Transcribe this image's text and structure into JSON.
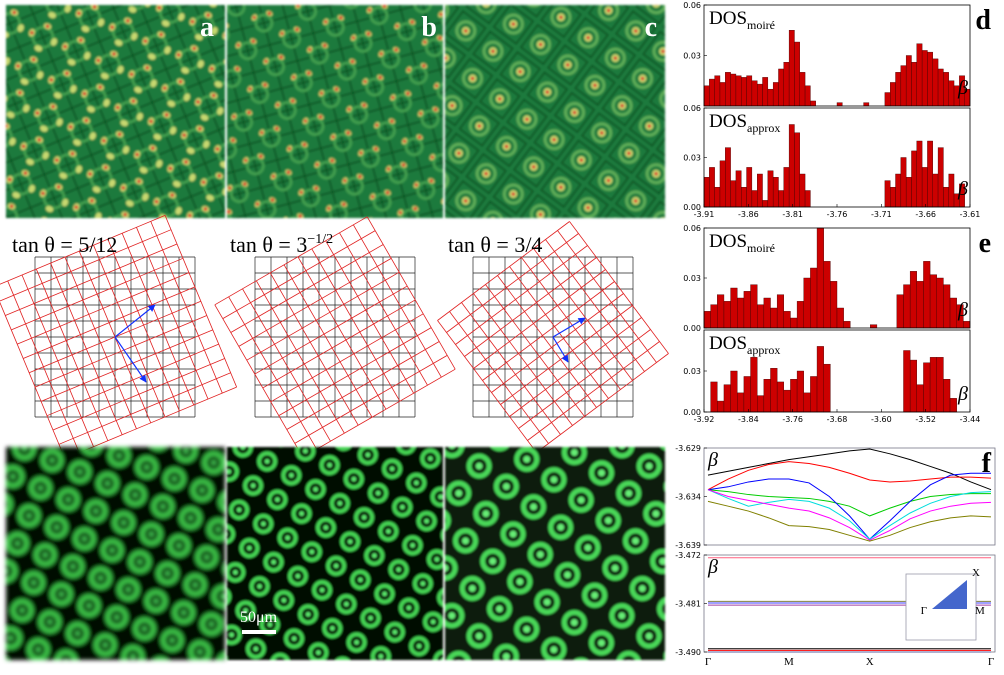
{
  "panels": {
    "labels": [
      "a",
      "b",
      "c"
    ]
  },
  "lattices": [
    {
      "label": "tan θ = 5/12"
    },
    {
      "label": "tan θ = 3",
      "label_sup": "−1/2"
    },
    {
      "label": "tan θ = 3/4"
    }
  ],
  "scale_bar": "50μm",
  "chart_data": [
    {
      "type": "histogram",
      "panel_label": "d",
      "title": "DOS",
      "title_sub": "moiré",
      "y_label": "β",
      "color": "#cc0000",
      "bins": [
        -3.91,
        -3.904,
        -3.898,
        -3.892,
        -3.886,
        -3.88,
        -3.874,
        -3.868,
        -3.862,
        -3.856,
        -3.85,
        -3.844,
        -3.838,
        -3.832,
        -3.826,
        -3.82,
        -3.814,
        -3.808,
        -3.802,
        -3.796,
        -3.79,
        -3.784,
        -3.778,
        -3.772,
        -3.766,
        -3.76,
        -3.754,
        -3.748,
        -3.742,
        -3.736,
        -3.73,
        -3.724,
        -3.718,
        -3.712,
        -3.706,
        -3.7,
        -3.694,
        -3.688,
        -3.682,
        -3.676,
        -3.67,
        -3.664,
        -3.658,
        -3.652,
        -3.646,
        -3.64,
        -3.634,
        -3.628,
        -3.622,
        -3.616,
        -3.61
      ],
      "values": [
        0.012,
        0.016,
        0.018,
        0.014,
        0.02,
        0.019,
        0.018,
        0.017,
        0.018,
        0.015,
        0.013,
        0.017,
        0.01,
        0.014,
        0.022,
        0.026,
        0.045,
        0.038,
        0.02,
        0.012,
        0.003,
        0,
        0,
        0,
        0,
        0.002,
        0,
        0,
        0,
        0,
        0.002,
        0,
        0,
        0,
        0.008,
        0.014,
        0.02,
        0.024,
        0.03,
        0.026,
        0.037,
        0.033,
        0.032,
        0.028,
        0.022,
        0.02,
        0.015,
        0.012,
        0.018,
        0.01
      ],
      "xlim": [
        -3.91,
        -3.61
      ],
      "ylim": [
        0,
        0.06
      ],
      "yticks": [
        0.03,
        0.06
      ]
    },
    {
      "type": "histogram",
      "title": "DOS",
      "title_sub": "approx",
      "y_label": "β",
      "color": "#cc0000",
      "bins": [
        -3.91,
        -3.904,
        -3.898,
        -3.892,
        -3.886,
        -3.88,
        -3.874,
        -3.868,
        -3.862,
        -3.856,
        -3.85,
        -3.844,
        -3.838,
        -3.832,
        -3.826,
        -3.82,
        -3.814,
        -3.808,
        -3.802,
        -3.796,
        -3.79,
        -3.784,
        -3.778,
        -3.772,
        -3.766,
        -3.76,
        -3.754,
        -3.748,
        -3.742,
        -3.736,
        -3.73,
        -3.724,
        -3.718,
        -3.712,
        -3.706,
        -3.7,
        -3.694,
        -3.688,
        -3.682,
        -3.676,
        -3.67,
        -3.664,
        -3.658,
        -3.652,
        -3.646,
        -3.64,
        -3.634,
        -3.628,
        -3.622,
        -3.616,
        -3.61
      ],
      "values": [
        0.018,
        0.024,
        0.012,
        0.028,
        0.036,
        0.016,
        0.022,
        0.012,
        0.024,
        0.01,
        0.02,
        0.004,
        0.022,
        0.018,
        0.01,
        0.024,
        0.05,
        0.045,
        0.02,
        0.01,
        0,
        0,
        0,
        0,
        0,
        0,
        0,
        0,
        0,
        0,
        0,
        0,
        0,
        0,
        0.016,
        0.012,
        0.02,
        0.03,
        0.018,
        0.034,
        0.04,
        0.024,
        0.04,
        0.02,
        0.036,
        0.012,
        0.02,
        0.008,
        0.014,
        0
      ],
      "xlim": [
        -3.91,
        -3.61
      ],
      "ylim": [
        0,
        0.06
      ],
      "yticks": [
        {
          "value": 0,
          "label": "0.00"
        },
        0.03,
        0.06
      ],
      "xticks": [
        -3.91,
        -3.86,
        -3.81,
        -3.76,
        -3.71,
        -3.66,
        -3.61
      ]
    },
    {
      "type": "histogram",
      "panel_label": "e",
      "title": "DOS",
      "title_sub": "moiré",
      "y_label": "β",
      "color": "#cc0000",
      "bins": [
        -3.92,
        -3.908,
        -3.896,
        -3.884,
        -3.872,
        -3.86,
        -3.848,
        -3.836,
        -3.824,
        -3.812,
        -3.8,
        -3.788,
        -3.776,
        -3.764,
        -3.752,
        -3.74,
        -3.728,
        -3.716,
        -3.704,
        -3.692,
        -3.68,
        -3.668,
        -3.656,
        -3.644,
        -3.632,
        -3.62,
        -3.608,
        -3.596,
        -3.584,
        -3.572,
        -3.56,
        -3.548,
        -3.536,
        -3.524,
        -3.512,
        -3.5,
        -3.488,
        -3.476,
        -3.464,
        -3.452,
        -3.44
      ],
      "values": [
        0.01,
        0.014,
        0.02,
        0.016,
        0.024,
        0.018,
        0.022,
        0.026,
        0.014,
        0.018,
        0.012,
        0.02,
        0.01,
        0.006,
        0.016,
        0.03,
        0.036,
        0.06,
        0.04,
        0.028,
        0.012,
        0.004,
        0,
        0,
        0,
        0.002,
        0,
        0,
        0,
        0.02,
        0.026,
        0.034,
        0.028,
        0.04,
        0.032,
        0.03,
        0.026,
        0.018,
        0.014,
        0.004
      ],
      "xlim": [
        -3.92,
        -3.44
      ],
      "ylim": [
        0,
        0.06
      ],
      "yticks": [
        {
          "value": 0,
          "label": "0.00"
        },
        0.03,
        0.06
      ]
    },
    {
      "type": "histogram",
      "title": "DOS",
      "title_sub": "approx",
      "y_label": "β",
      "color": "#cc0000",
      "bins": [
        -3.92,
        -3.908,
        -3.896,
        -3.884,
        -3.872,
        -3.86,
        -3.848,
        -3.836,
        -3.824,
        -3.812,
        -3.8,
        -3.788,
        -3.776,
        -3.764,
        -3.752,
        -3.74,
        -3.728,
        -3.716,
        -3.704,
        -3.692,
        -3.68,
        -3.668,
        -3.656,
        -3.644,
        -3.632,
        -3.62,
        -3.608,
        -3.596,
        -3.584,
        -3.572,
        -3.56,
        -3.548,
        -3.536,
        -3.524,
        -3.512,
        -3.5,
        -3.488,
        -3.476,
        -3.464,
        -3.452,
        -3.44
      ],
      "values": [
        0,
        0.022,
        0.008,
        0.02,
        0.03,
        0.014,
        0.026,
        0.04,
        0.012,
        0.024,
        0.032,
        0.022,
        0.016,
        0.024,
        0.03,
        0.014,
        0.026,
        0.048,
        0.035,
        0,
        0,
        0,
        0,
        0,
        0,
        0,
        0,
        0,
        0,
        0,
        0.045,
        0.038,
        0.02,
        0.036,
        0.04,
        0.04,
        0.024,
        0.01,
        0,
        0
      ],
      "xlim": [
        -3.92,
        -3.44
      ],
      "ylim": [
        0,
        0.06
      ],
      "yticks": [
        {
          "value": 0,
          "label": "0.00"
        },
        0.03
      ],
      "xticks": [
        -3.92,
        -3.84,
        -3.76,
        -3.68,
        {
          "value": -3.6,
          "label": "-3.60"
        },
        -3.52,
        -3.44
      ]
    },
    {
      "type": "line",
      "panel_label": "f",
      "y_label": "β",
      "ylim": [
        -3.639,
        -3.629
      ],
      "yticks": [
        -3.629,
        -3.634,
        -3.639
      ],
      "series": [
        {
          "color": "#000000",
          "values": [
            -3.6318,
            -3.6314,
            -3.631,
            -3.6306,
            -3.6302,
            -3.6299,
            -3.6296,
            -3.6293,
            -3.6291,
            -3.6296,
            -3.6302,
            -3.6309,
            -3.6316,
            -3.6325,
            -3.6333
          ]
        },
        {
          "color": "#ff0000",
          "values": [
            -3.6333,
            -3.6322,
            -3.6313,
            -3.6307,
            -3.6304,
            -3.6306,
            -3.631,
            -3.6316,
            -3.6323,
            -3.6325,
            -3.6324,
            -3.6322,
            -3.632,
            -3.632,
            -3.6321
          ]
        },
        {
          "color": "#00cc00",
          "values": [
            -3.6333,
            -3.6335,
            -3.6338,
            -3.634,
            -3.6341,
            -3.6342,
            -3.6345,
            -3.635,
            -3.636,
            -3.6352,
            -3.6345,
            -3.634,
            -3.6338,
            -3.6337,
            -3.6337
          ]
        },
        {
          "color": "#0000ff",
          "values": [
            -3.6333,
            -3.633,
            -3.6325,
            -3.6322,
            -3.6322,
            -3.6326,
            -3.634,
            -3.636,
            -3.6384,
            -3.6365,
            -3.6345,
            -3.6328,
            -3.6318,
            -3.6316,
            -3.6316
          ]
        },
        {
          "color": "#00dddd",
          "values": [
            -3.6333,
            -3.6342,
            -3.635,
            -3.6346,
            -3.6343,
            -3.6345,
            -3.6352,
            -3.6365,
            -3.6384,
            -3.637,
            -3.6357,
            -3.6347,
            -3.634,
            -3.6336,
            -3.6335
          ]
        },
        {
          "color": "#ff00ff",
          "values": [
            -3.6333,
            -3.634,
            -3.6344,
            -3.6348,
            -3.6352,
            -3.6355,
            -3.6362,
            -3.6372,
            -3.6385,
            -3.6375,
            -3.6363,
            -3.6355,
            -3.635,
            -3.6347,
            -3.6346
          ]
        },
        {
          "color": "#808000",
          "values": [
            -3.6345,
            -3.635,
            -3.6355,
            -3.6362,
            -3.637,
            -3.6371,
            -3.6374,
            -3.638,
            -3.6386,
            -3.638,
            -3.6372,
            -3.6366,
            -3.6362,
            -3.636,
            -3.6361
          ]
        }
      ]
    },
    {
      "type": "line",
      "y_label": "β",
      "categories": [
        "Γ",
        null,
        null,
        null,
        "M",
        null,
        null,
        null,
        "X",
        null,
        null,
        null,
        null,
        null,
        "Γ"
      ],
      "ylim": [
        -3.49,
        -3.472
      ],
      "yticks": [
        -3.472,
        -3.481,
        {
          "value": -3.49,
          "label": "-3.490"
        }
      ],
      "inset_labels": [
        "X",
        "Γ",
        "M"
      ],
      "series": [
        {
          "color": "#ff6080",
          "values": [
            -3.4725,
            -3.4725,
            -3.4725,
            -3.4725,
            -3.4725,
            -3.4725,
            -3.4725,
            -3.4725,
            -3.4725,
            -3.4725,
            -3.4725,
            -3.4725,
            -3.4725,
            -3.4725,
            -3.4725
          ]
        },
        {
          "color": "#808040",
          "values": [
            -3.4806,
            -3.4806,
            -3.4806,
            -3.4806,
            -3.4806,
            -3.4806,
            -3.4806,
            -3.4806,
            -3.4806,
            -3.4806,
            -3.4806,
            -3.4806,
            -3.4806,
            -3.4806,
            -3.4806
          ]
        },
        {
          "color": "#4040ff",
          "values": [
            -3.4809,
            -3.4809,
            -3.4809,
            -3.4809,
            -3.4809,
            -3.4809,
            -3.4809,
            -3.4809,
            -3.4809,
            -3.4809,
            -3.4809,
            -3.4809,
            -3.4809,
            -3.4809,
            -3.4809
          ]
        },
        {
          "color": "#a040a0",
          "values": [
            -3.4813,
            -3.4813,
            -3.4813,
            -3.4813,
            -3.4813,
            -3.4813,
            -3.4813,
            -3.4813,
            -3.4813,
            -3.4813,
            -3.4813,
            -3.4813,
            -3.4813,
            -3.4813,
            -3.4813
          ]
        },
        {
          "color": "#000000",
          "values": [
            -3.4894,
            -3.4894,
            -3.4894,
            -3.4894,
            -3.4894,
            -3.4894,
            -3.4894,
            -3.4894,
            -3.4894,
            -3.4894,
            -3.4894,
            -3.4894,
            -3.4894,
            -3.4894,
            -3.4894
          ]
        },
        {
          "color": "#ff0000",
          "values": [
            -3.4897,
            -3.4897,
            -3.4897,
            -3.4897,
            -3.4897,
            -3.4897,
            -3.4897,
            -3.4897,
            -3.4897,
            -3.4897,
            -3.4897,
            -3.4897,
            -3.4897,
            -3.4897,
            -3.4897
          ]
        },
        {
          "color": "#0000ff",
          "values": [
            -3.49,
            -3.49,
            -3.49,
            -3.49,
            -3.49,
            -3.49,
            -3.49,
            -3.49,
            -3.49,
            -3.49,
            -3.49,
            -3.49,
            -3.49,
            -3.49,
            -3.49
          ]
        }
      ]
    }
  ]
}
